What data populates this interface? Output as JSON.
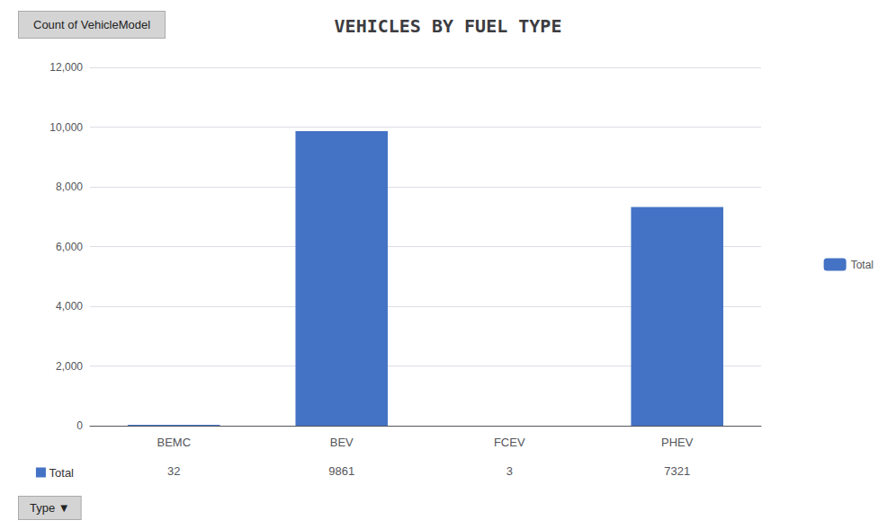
{
  "chart_data": {
    "type": "bar",
    "title": "VEHICLES BY FUEL TYPE",
    "categories": [
      "BEMC",
      "BEV",
      "FCEV",
      "PHEV"
    ],
    "series": [
      {
        "name": "Total",
        "color": "#4472C4",
        "values": [
          32,
          9861,
          3,
          7321
        ]
      }
    ],
    "ylim": [
      0,
      12000
    ],
    "yticks": [
      0,
      2000,
      4000,
      6000,
      8000,
      10000,
      12000
    ],
    "grid": true,
    "legend": "right",
    "annotations": [
      "Count of VehicleModel",
      "Type ▼"
    ]
  }
}
